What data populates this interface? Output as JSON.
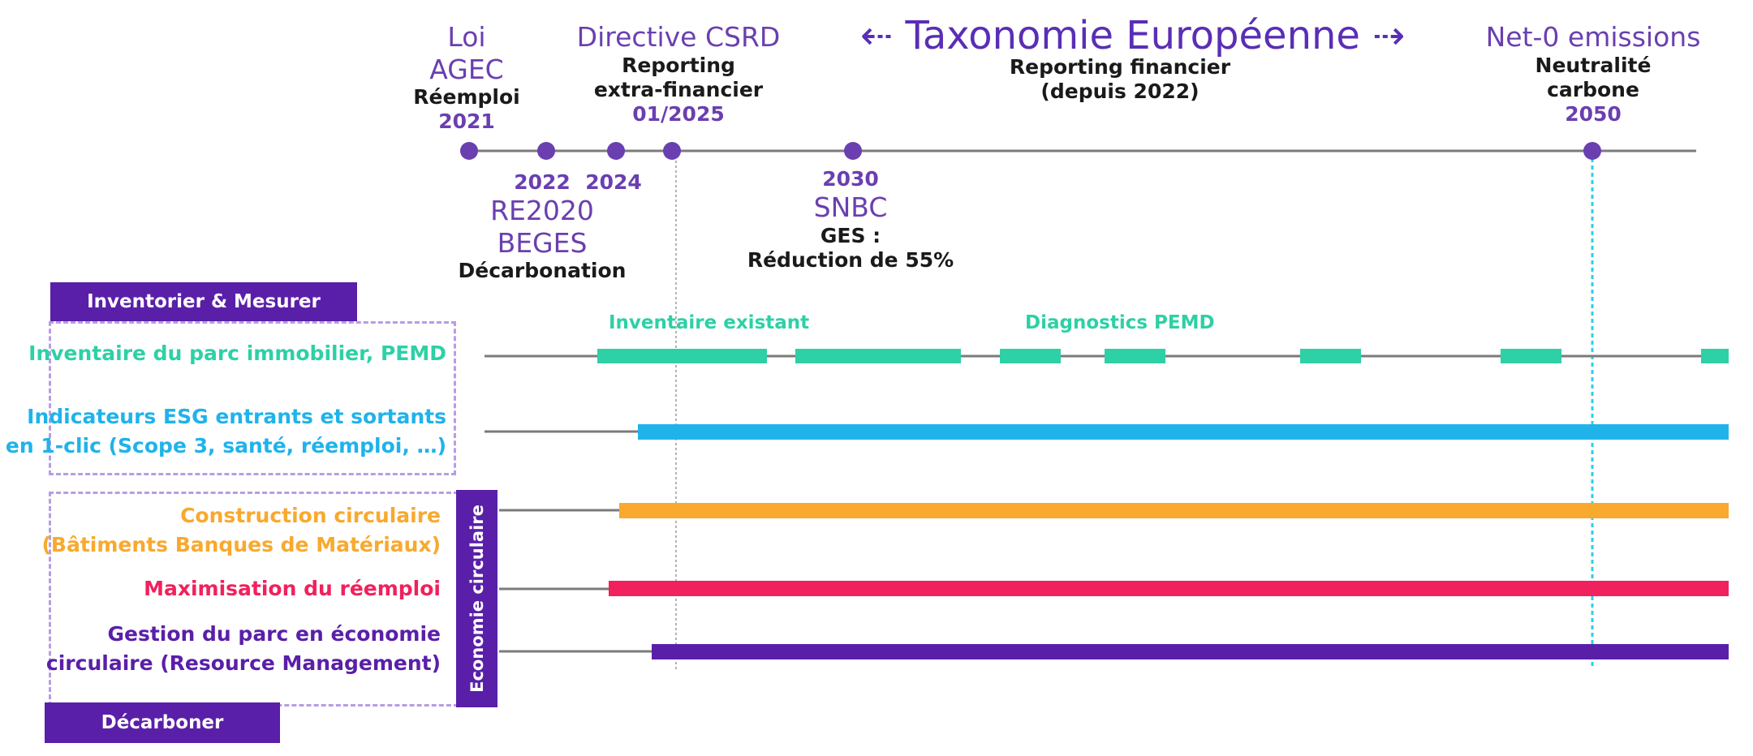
{
  "header": {
    "taxonomie": "⇠ Taxonomie Européenne ⇢",
    "taxonomie_sub1": "Reporting financier",
    "taxonomie_sub2": "(depuis 2022)"
  },
  "events_top": [
    {
      "title1": "Loi",
      "title2": "AGEC",
      "sub1": "Réemploi",
      "date": "2021"
    },
    {
      "title1": "Directive CSRD",
      "sub1": "Reporting",
      "sub2": "extra-financier",
      "date": "01/2025"
    },
    {
      "title1": "Net-0 emissions",
      "sub1": "Neutralité",
      "sub2": "carbone",
      "date": "2050"
    }
  ],
  "events_bottom": [
    {
      "date": "2022",
      "title1": "RE2020",
      "title2": "BEGES",
      "sub1": "Décarbonation"
    },
    {
      "date": "2024"
    },
    {
      "date": "2030",
      "title1": "SNBC",
      "sub1": "GES :",
      "sub2": "Réduction de 55%"
    }
  ],
  "sections": {
    "inventorier": "Inventorier & Mesurer",
    "decarboner": "Décarboner",
    "economie": "Economie circulaire"
  },
  "rows": [
    {
      "label1": "Inventaire du parc immobilier, PEMD",
      "color": "#2ed0a6"
    },
    {
      "label1": "Indicateurs ESG entrants et sortants",
      "label2": "en 1-clic (Scope 3, santé, réemploi, …)",
      "color": "#1fb3ea"
    },
    {
      "label1": "Construction circulaire",
      "label2": "(Bâtiments Banques de Matériaux)",
      "color": "#f8a92e"
    },
    {
      "label1": "Maximisation du réemploi",
      "color": "#f0215c"
    },
    {
      "label1": "Gestion du parc en économie",
      "label2": "circulaire (Resource Management)",
      "color": "#5a1fa8"
    }
  ],
  "tags": {
    "inventaire_existant": "Inventaire existant",
    "diagnostics": "Diagnostics PEMD"
  },
  "colors": {
    "accent": "#5a1fa8",
    "timeline": "#7b7b7b",
    "marker": "#6a3fb0",
    "net0_line": "#29d0e8"
  }
}
